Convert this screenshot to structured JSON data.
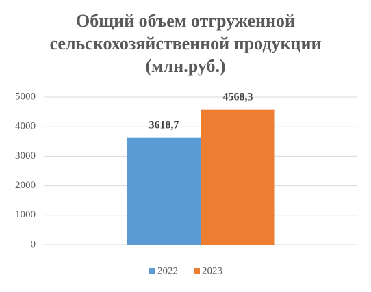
{
  "chart_data": {
    "type": "bar",
    "title": "Общий объем отгруженной сельскохозяйственной продукции (млн.руб.)",
    "categories": [
      null
    ],
    "series": [
      {
        "name": "2022",
        "color": "#5b9bd5",
        "values": [
          3618.7
        ],
        "value_labels": [
          "3618,7"
        ]
      },
      {
        "name": "2023",
        "color": "#ed7d31",
        "values": [
          4568.3
        ],
        "value_labels": [
          "4568,3"
        ]
      }
    ],
    "ylim": [
      0,
      5000
    ],
    "yticks": [
      0,
      1000,
      2000,
      3000,
      4000,
      5000
    ],
    "grid": true,
    "legend": "bottom"
  }
}
